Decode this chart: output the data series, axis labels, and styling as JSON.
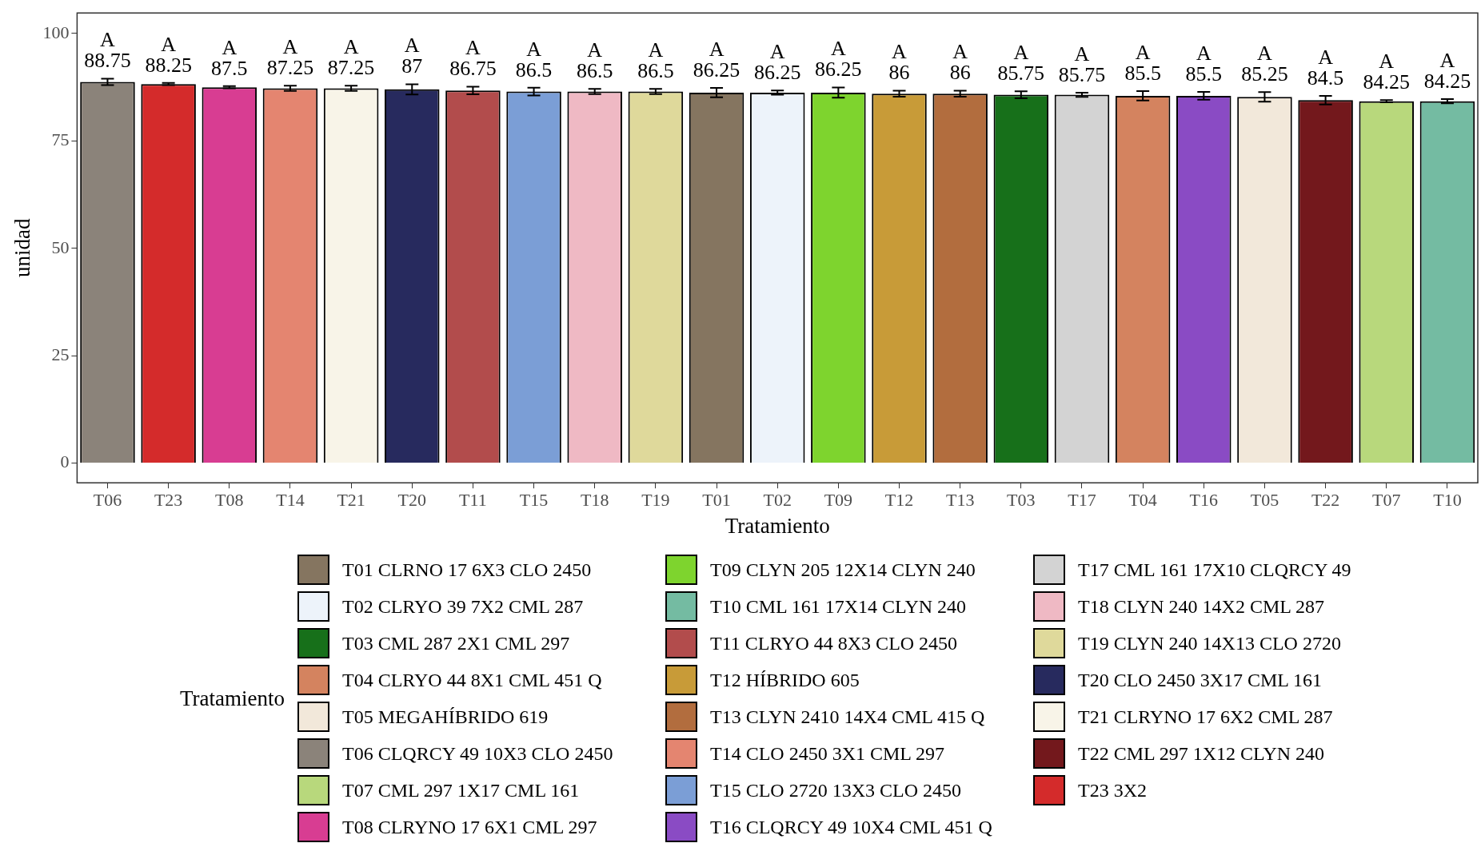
{
  "chart_data": {
    "type": "bar",
    "xlabel": "Tratamiento",
    "ylabel": "unidad",
    "legend_title": "Tratamiento",
    "legend": "bottom",
    "grid": false,
    "data_labels": true,
    "categories": [
      "T06",
      "T23",
      "T08",
      "T14",
      "T21",
      "T20",
      "T11",
      "T15",
      "T18",
      "T19",
      "T01",
      "T02",
      "T09",
      "T12",
      "T13",
      "T03",
      "T17",
      "T04",
      "T16",
      "T05",
      "T22",
      "T07",
      "T10"
    ],
    "ylim": [
      -4.6,
      104.8
    ],
    "yticks": [
      0,
      25,
      50,
      75,
      100
    ],
    "series": [
      {
        "name": "T01 CLRNO 17 6X3 CLO 2450",
        "color": "#857560",
        "values": [
          null,
          null,
          null,
          null,
          null,
          null,
          null,
          null,
          null,
          null,
          86.25,
          null,
          null,
          null,
          null,
          null,
          null,
          null,
          null,
          null,
          null,
          null,
          null
        ],
        "errors": [
          null,
          null,
          null,
          null,
          null,
          null,
          null,
          null,
          null,
          null,
          1.1,
          null,
          null,
          null,
          null,
          null,
          null,
          null,
          null,
          null,
          null,
          null,
          null
        ]
      },
      {
        "name": "T02 CLRYO 39 7X2 CML 287",
        "color": "#edf3fa",
        "values": [
          null,
          null,
          null,
          null,
          null,
          null,
          null,
          null,
          null,
          null,
          null,
          86.25,
          null,
          null,
          null,
          null,
          null,
          null,
          null,
          null,
          null,
          null,
          null
        ],
        "errors": [
          null,
          null,
          null,
          null,
          null,
          null,
          null,
          null,
          null,
          null,
          null,
          0.5,
          null,
          null,
          null,
          null,
          null,
          null,
          null,
          null,
          null,
          null,
          null
        ]
      },
      {
        "name": "T03 CML 287 2X1 CML 297",
        "color": "#17701a",
        "values": [
          null,
          null,
          null,
          null,
          null,
          null,
          null,
          null,
          null,
          null,
          null,
          null,
          null,
          null,
          null,
          85.75,
          null,
          null,
          null,
          null,
          null,
          null,
          null
        ],
        "errors": [
          null,
          null,
          null,
          null,
          null,
          null,
          null,
          null,
          null,
          null,
          null,
          null,
          null,
          null,
          null,
          0.8,
          null,
          null,
          null,
          null,
          null,
          null,
          null
        ]
      },
      {
        "name": "T04 CLRYO 44 8X1 CML 451 Q",
        "color": "#d4835f",
        "values": [
          null,
          null,
          null,
          null,
          null,
          null,
          null,
          null,
          null,
          null,
          null,
          null,
          null,
          null,
          null,
          null,
          null,
          85.5,
          null,
          null,
          null,
          null,
          null
        ],
        "errors": [
          null,
          null,
          null,
          null,
          null,
          null,
          null,
          null,
          null,
          null,
          null,
          null,
          null,
          null,
          null,
          null,
          null,
          1.1,
          null,
          null,
          null,
          null,
          null
        ]
      },
      {
        "name": "T05 MEGAHÍBRIDO 619",
        "color": "#f2e8da",
        "values": [
          null,
          null,
          null,
          null,
          null,
          null,
          null,
          null,
          null,
          null,
          null,
          null,
          null,
          null,
          null,
          null,
          null,
          null,
          null,
          85.25,
          null,
          null,
          null
        ],
        "errors": [
          null,
          null,
          null,
          null,
          null,
          null,
          null,
          null,
          null,
          null,
          null,
          null,
          null,
          null,
          null,
          null,
          null,
          null,
          null,
          1.1,
          null,
          null,
          null
        ]
      },
      {
        "name": "T06 CLQRCY 49 10X3 CLO 2450",
        "color": "#8b837a",
        "values": [
          88.75,
          null,
          null,
          null,
          null,
          null,
          null,
          null,
          null,
          null,
          null,
          null,
          null,
          null,
          null,
          null,
          null,
          null,
          null,
          null,
          null,
          null,
          null
        ],
        "errors": [
          0.75,
          null,
          null,
          null,
          null,
          null,
          null,
          null,
          null,
          null,
          null,
          null,
          null,
          null,
          null,
          null,
          null,
          null,
          null,
          null,
          null,
          null,
          null
        ]
      },
      {
        "name": "T07 CML 297 1X17 CML 161",
        "color": "#b8d87c",
        "values": [
          null,
          null,
          null,
          null,
          null,
          null,
          null,
          null,
          null,
          null,
          null,
          null,
          null,
          null,
          null,
          null,
          null,
          null,
          null,
          null,
          null,
          84.25,
          null
        ],
        "errors": [
          null,
          null,
          null,
          null,
          null,
          null,
          null,
          null,
          null,
          null,
          null,
          null,
          null,
          null,
          null,
          null,
          null,
          null,
          null,
          null,
          null,
          0.25,
          null
        ]
      },
      {
        "name": "T08 CLRYNO 17 6X1 CML 297",
        "color": "#d83d92",
        "values": [
          null,
          null,
          87.5,
          null,
          null,
          null,
          null,
          null,
          null,
          null,
          null,
          null,
          null,
          null,
          null,
          null,
          null,
          null,
          null,
          null,
          null,
          null,
          null
        ],
        "errors": [
          null,
          null,
          0.25,
          null,
          null,
          null,
          null,
          null,
          null,
          null,
          null,
          null,
          null,
          null,
          null,
          null,
          null,
          null,
          null,
          null,
          null,
          null,
          null
        ]
      },
      {
        "name": "T09 CLYN 205 12X14 CLYN 240",
        "color": "#7ed42e",
        "values": [
          null,
          null,
          null,
          null,
          null,
          null,
          null,
          null,
          null,
          null,
          null,
          null,
          86.25,
          null,
          null,
          null,
          null,
          null,
          null,
          null,
          null,
          null,
          null
        ],
        "errors": [
          null,
          null,
          null,
          null,
          null,
          null,
          null,
          null,
          null,
          null,
          null,
          null,
          1.2,
          null,
          null,
          null,
          null,
          null,
          null,
          null,
          null,
          null,
          null
        ]
      },
      {
        "name": "T10 CML 161 17X14 CLYN 240",
        "color": "#74bba2",
        "values": [
          null,
          null,
          null,
          null,
          null,
          null,
          null,
          null,
          null,
          null,
          null,
          null,
          null,
          null,
          null,
          null,
          null,
          null,
          null,
          null,
          null,
          null,
          84.25
        ],
        "errors": [
          null,
          null,
          null,
          null,
          null,
          null,
          null,
          null,
          null,
          null,
          null,
          null,
          null,
          null,
          null,
          null,
          null,
          null,
          null,
          null,
          null,
          null,
          0.5
        ]
      },
      {
        "name": "T11 CLRYO 44 8X3 CLO 2450",
        "color": "#b24c4c",
        "values": [
          null,
          null,
          null,
          null,
          null,
          null,
          86.75,
          null,
          null,
          null,
          null,
          null,
          null,
          null,
          null,
          null,
          null,
          null,
          null,
          null,
          null,
          null,
          null
        ],
        "errors": [
          null,
          null,
          null,
          null,
          null,
          null,
          0.9,
          null,
          null,
          null,
          null,
          null,
          null,
          null,
          null,
          null,
          null,
          null,
          null,
          null,
          null,
          null,
          null
        ]
      },
      {
        "name": "T12 HÍBRIDO 605",
        "color": "#c89b38",
        "values": [
          null,
          null,
          null,
          null,
          null,
          null,
          null,
          null,
          null,
          null,
          null,
          null,
          null,
          86,
          null,
          null,
          null,
          null,
          null,
          null,
          null,
          null,
          null
        ],
        "errors": [
          null,
          null,
          null,
          null,
          null,
          null,
          null,
          null,
          null,
          null,
          null,
          null,
          null,
          0.7,
          null,
          null,
          null,
          null,
          null,
          null,
          null,
          null,
          null
        ]
      },
      {
        "name": "T13 CLYN 2410 14X4 CML 415 Q",
        "color": "#b26d3e",
        "values": [
          null,
          null,
          null,
          null,
          null,
          null,
          null,
          null,
          null,
          null,
          null,
          null,
          null,
          null,
          86,
          null,
          null,
          null,
          null,
          null,
          null,
          null,
          null
        ],
        "errors": [
          null,
          null,
          null,
          null,
          null,
          null,
          null,
          null,
          null,
          null,
          null,
          null,
          null,
          null,
          0.7,
          null,
          null,
          null,
          null,
          null,
          null,
          null,
          null
        ]
      },
      {
        "name": "T14 CLO 2450 3X1 CML 297",
        "color": "#e48570",
        "values": [
          null,
          null,
          null,
          87.25,
          null,
          null,
          null,
          null,
          null,
          null,
          null,
          null,
          null,
          null,
          null,
          null,
          null,
          null,
          null,
          null,
          null,
          null,
          null
        ],
        "errors": [
          null,
          null,
          null,
          0.6,
          null,
          null,
          null,
          null,
          null,
          null,
          null,
          null,
          null,
          null,
          null,
          null,
          null,
          null,
          null,
          null,
          null,
          null,
          null
        ]
      },
      {
        "name": "T15 CLO 2720 13X3 CLO 2450",
        "color": "#7b9ed6",
        "values": [
          null,
          null,
          null,
          null,
          null,
          null,
          null,
          86.5,
          null,
          null,
          null,
          null,
          null,
          null,
          null,
          null,
          null,
          null,
          null,
          null,
          null,
          null,
          null
        ],
        "errors": [
          null,
          null,
          null,
          null,
          null,
          null,
          null,
          0.9,
          null,
          null,
          null,
          null,
          null,
          null,
          null,
          null,
          null,
          null,
          null,
          null,
          null,
          null,
          null
        ]
      },
      {
        "name": "T16 CLQRCY 49 10X4 CML 451 Q",
        "color": "#8a4bc4",
        "values": [
          null,
          null,
          null,
          null,
          null,
          null,
          null,
          null,
          null,
          null,
          null,
          null,
          null,
          null,
          null,
          null,
          null,
          null,
          85.5,
          null,
          null,
          null,
          null
        ],
        "errors": [
          null,
          null,
          null,
          null,
          null,
          null,
          null,
          null,
          null,
          null,
          null,
          null,
          null,
          null,
          null,
          null,
          null,
          null,
          0.9,
          null,
          null,
          null,
          null
        ]
      },
      {
        "name": "T17 CML 161 17X10 CLQRCY 49",
        "color": "#d3d3d3",
        "values": [
          null,
          null,
          null,
          null,
          null,
          null,
          null,
          null,
          null,
          null,
          null,
          null,
          null,
          null,
          null,
          null,
          85.75,
          null,
          null,
          null,
          null,
          null,
          null
        ],
        "errors": [
          null,
          null,
          null,
          null,
          null,
          null,
          null,
          null,
          null,
          null,
          null,
          null,
          null,
          null,
          null,
          null,
          0.5,
          null,
          null,
          null,
          null,
          null,
          null
        ]
      },
      {
        "name": "T18 CLYN 240 14X2 CML 287",
        "color": "#efb9c4",
        "values": [
          null,
          null,
          null,
          null,
          null,
          null,
          null,
          null,
          86.5,
          null,
          null,
          null,
          null,
          null,
          null,
          null,
          null,
          null,
          null,
          null,
          null,
          null,
          null
        ],
        "errors": [
          null,
          null,
          null,
          null,
          null,
          null,
          null,
          null,
          0.6,
          null,
          null,
          null,
          null,
          null,
          null,
          null,
          null,
          null,
          null,
          null,
          null,
          null,
          null
        ]
      },
      {
        "name": "T19 CLYN 240 14X13 CLO 2720",
        "color": "#dfd99b",
        "values": [
          null,
          null,
          null,
          null,
          null,
          null,
          null,
          null,
          null,
          86.5,
          null,
          null,
          null,
          null,
          null,
          null,
          null,
          null,
          null,
          null,
          null,
          null,
          null
        ],
        "errors": [
          null,
          null,
          null,
          null,
          null,
          null,
          null,
          null,
          null,
          0.6,
          null,
          null,
          null,
          null,
          null,
          null,
          null,
          null,
          null,
          null,
          null,
          null,
          null
        ]
      },
      {
        "name": "T20 CLO 2450 3X17 CML 161",
        "color": "#272a5e",
        "values": [
          null,
          null,
          null,
          null,
          null,
          87,
          null,
          null,
          null,
          null,
          null,
          null,
          null,
          null,
          null,
          null,
          null,
          null,
          null,
          null,
          null,
          null,
          null
        ],
        "errors": [
          null,
          null,
          null,
          null,
          null,
          1.2,
          null,
          null,
          null,
          null,
          null,
          null,
          null,
          null,
          null,
          null,
          null,
          null,
          null,
          null,
          null,
          null,
          null
        ]
      },
      {
        "name": "T21 CLRYNO 17 6X2 CML 287",
        "color": "#f8f4e8",
        "values": [
          null,
          null,
          null,
          null,
          87.25,
          null,
          null,
          null,
          null,
          null,
          null,
          null,
          null,
          null,
          null,
          null,
          null,
          null,
          null,
          null,
          null,
          null,
          null
        ],
        "errors": [
          null,
          null,
          null,
          null,
          0.6,
          null,
          null,
          null,
          null,
          null,
          null,
          null,
          null,
          null,
          null,
          null,
          null,
          null,
          null,
          null,
          null,
          null,
          null
        ]
      },
      {
        "name": "T22 CML 297 1X12 CLYN 240",
        "color": "#73181c",
        "values": [
          null,
          null,
          null,
          null,
          null,
          null,
          null,
          null,
          null,
          null,
          null,
          null,
          null,
          null,
          null,
          null,
          null,
          null,
          null,
          null,
          84.5,
          null,
          null
        ],
        "errors": [
          null,
          null,
          null,
          null,
          null,
          null,
          null,
          null,
          null,
          null,
          null,
          null,
          null,
          null,
          null,
          null,
          null,
          null,
          null,
          null,
          1.0,
          null,
          null
        ]
      },
      {
        "name": "T23 3X2",
        "color": "#d42b2b",
        "values": [
          null,
          88.25,
          null,
          null,
          null,
          null,
          null,
          null,
          null,
          null,
          null,
          null,
          null,
          null,
          null,
          null,
          null,
          null,
          null,
          null,
          null,
          null,
          null
        ],
        "errors": [
          null,
          0.25,
          null,
          null,
          null,
          null,
          null,
          null,
          null,
          null,
          null,
          null,
          null,
          null,
          null,
          null,
          null,
          null,
          null,
          null,
          null,
          null,
          null
        ]
      }
    ],
    "annotations": [
      {
        "text": "A",
        "x": "T06",
        "y": 88.75
      },
      {
        "text": "A",
        "x": "T23",
        "y": 88.25
      },
      {
        "text": "A",
        "x": "T08",
        "y": 87.5
      },
      {
        "text": "A",
        "x": "T14",
        "y": 87.25
      },
      {
        "text": "A",
        "x": "T21",
        "y": 87.25
      },
      {
        "text": "A",
        "x": "T20",
        "y": 87
      },
      {
        "text": "A",
        "x": "T11",
        "y": 86.75
      },
      {
        "text": "A",
        "x": "T15",
        "y": 86.5
      },
      {
        "text": "A",
        "x": "T18",
        "y": 86.5
      },
      {
        "text": "A",
        "x": "T19",
        "y": 86.5
      },
      {
        "text": "A",
        "x": "T01",
        "y": 86.25
      },
      {
        "text": "A",
        "x": "T02",
        "y": 86.25
      },
      {
        "text": "A",
        "x": "T09",
        "y": 86.25
      },
      {
        "text": "A",
        "x": "T12",
        "y": 86
      },
      {
        "text": "A",
        "x": "T13",
        "y": 86
      },
      {
        "text": "A",
        "x": "T03",
        "y": 85.75
      },
      {
        "text": "A",
        "x": "T17",
        "y": 85.75
      },
      {
        "text": "A",
        "x": "T04",
        "y": 85.5
      },
      {
        "text": "A",
        "x": "T16",
        "y": 85.5
      },
      {
        "text": "A",
        "x": "T05",
        "y": 85.25
      },
      {
        "text": "A",
        "x": "T22",
        "y": 84.5
      },
      {
        "text": "A",
        "x": "T07",
        "y": 84.25
      },
      {
        "text": "A",
        "x": "T10",
        "y": 84.25
      }
    ]
  }
}
